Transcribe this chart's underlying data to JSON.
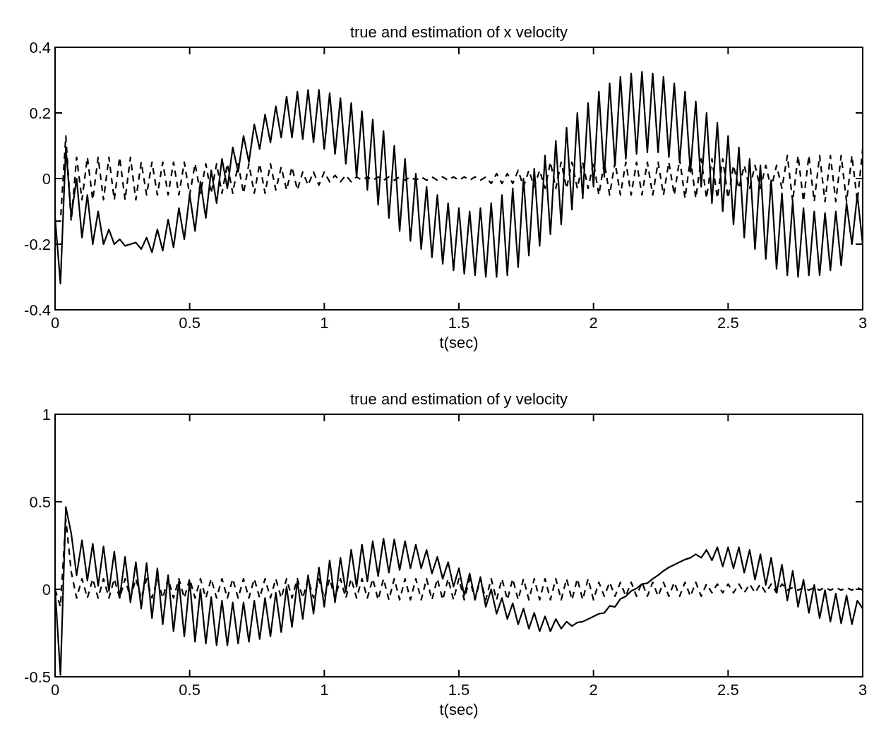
{
  "chart_data": [
    {
      "type": "line",
      "title": "true and estimation of x velocity",
      "xlabel": "t(sec)",
      "x": [
        0,
        0.02,
        0.04,
        0.06,
        0.08,
        0.1,
        0.12,
        0.14,
        0.16,
        0.18,
        0.2,
        0.22,
        0.24,
        0.26,
        0.28,
        0.3,
        0.32,
        0.34,
        0.36,
        0.38,
        0.4,
        0.42,
        0.44,
        0.46,
        0.48,
        0.5,
        0.52,
        0.54,
        0.56,
        0.58,
        0.6,
        0.62,
        0.64,
        0.66,
        0.68,
        0.7,
        0.72,
        0.74,
        0.76,
        0.78,
        0.8,
        0.82,
        0.84,
        0.86,
        0.88,
        0.9,
        0.92,
        0.94,
        0.96,
        0.98,
        1,
        1.02,
        1.04,
        1.06,
        1.08,
        1.1,
        1.12,
        1.14,
        1.16,
        1.18,
        1.2,
        1.22,
        1.24,
        1.26,
        1.28,
        1.3,
        1.32,
        1.34,
        1.36,
        1.38,
        1.4,
        1.42,
        1.44,
        1.46,
        1.48,
        1.5,
        1.52,
        1.54,
        1.56,
        1.58,
        1.6,
        1.62,
        1.64,
        1.66,
        1.68,
        1.7,
        1.72,
        1.74,
        1.76,
        1.78,
        1.8,
        1.82,
        1.84,
        1.86,
        1.88,
        1.9,
        1.92,
        1.94,
        1.96,
        1.98,
        2,
        2.02,
        2.04,
        2.06,
        2.08,
        2.1,
        2.12,
        2.14,
        2.16,
        2.18,
        2.2,
        2.22,
        2.24,
        2.26,
        2.28,
        2.3,
        2.32,
        2.34,
        2.36,
        2.38,
        2.4,
        2.42,
        2.44,
        2.46,
        2.48,
        2.5,
        2.52,
        2.54,
        2.56,
        2.58,
        2.6,
        2.62,
        2.64,
        2.66,
        2.68,
        2.7,
        2.72,
        2.74,
        2.76,
        2.78,
        2.8,
        2.82,
        2.84,
        2.86,
        2.88,
        2.9,
        2.92,
        2.94,
        2.96,
        2.98,
        3
      ],
      "series": [
        {
          "color": "#000000",
          "line_style": "solid",
          "values": [
            -0.12,
            -0.32,
            0.095,
            -0.115,
            0,
            -0.18,
            -0.05,
            -0.2,
            -0.1,
            -0.2,
            -0.155,
            -0.2,
            -0.185,
            -0.205,
            -0.2,
            -0.195,
            -0.215,
            -0.18,
            -0.225,
            -0.155,
            -0.22,
            -0.125,
            -0.21,
            -0.09,
            -0.185,
            -0.05,
            -0.16,
            -0.01,
            -0.12,
            0.025,
            -0.075,
            0.06,
            -0.03,
            0.095,
            0.02,
            0.13,
            0.05,
            0.165,
            0.09,
            0.195,
            0.11,
            0.22,
            0.125,
            0.25,
            0.125,
            0.265,
            0.12,
            0.27,
            0.11,
            0.27,
            0.09,
            0.26,
            0.075,
            0.245,
            0.045,
            0.23,
            0.005,
            0.205,
            -0.035,
            0.18,
            -0.08,
            0.145,
            -0.12,
            0.1,
            -0.16,
            0.06,
            -0.19,
            0.015,
            -0.215,
            -0.025,
            -0.24,
            -0.05,
            -0.26,
            -0.075,
            -0.28,
            -0.09,
            -0.29,
            -0.1,
            -0.295,
            -0.09,
            -0.3,
            -0.075,
            -0.3,
            -0.05,
            -0.295,
            -0.03,
            -0.27,
            0,
            -0.235,
            0.03,
            -0.205,
            0.07,
            -0.17,
            0.115,
            -0.14,
            0.155,
            -0.095,
            0.2,
            -0.06,
            0.23,
            -0.025,
            0.265,
            0.005,
            0.29,
            0.04,
            0.31,
            0.06,
            0.32,
            0.075,
            0.325,
            0.08,
            0.32,
            0.08,
            0.31,
            0.065,
            0.29,
            0.05,
            0.265,
            0.02,
            0.235,
            -0.025,
            0.2,
            -0.075,
            0.17,
            -0.1,
            0.13,
            -0.14,
            0.095,
            -0.18,
            0.06,
            -0.215,
            0.04,
            -0.245,
            -0.005,
            -0.275,
            -0.045,
            -0.295,
            -0.07,
            -0.3,
            -0.09,
            -0.295,
            -0.1,
            -0.295,
            -0.105,
            -0.28,
            -0.1,
            -0.265,
            -0.075,
            -0.2,
            -0.05,
            -0.2
          ]
        },
        {
          "color": "#000000",
          "line_style": "dashed",
          "values": [
            -0.13,
            -0.13,
            0.13,
            -0.13,
            0.065,
            -0.065,
            0.065,
            -0.065,
            0.065,
            -0.065,
            0.065,
            -0.065,
            0.065,
            -0.065,
            0.065,
            -0.065,
            0.05,
            -0.05,
            0.05,
            -0.05,
            0.05,
            -0.05,
            0.05,
            -0.05,
            0.05,
            -0.05,
            0.045,
            -0.045,
            0.045,
            -0.045,
            0.045,
            -0.045,
            0.045,
            -0.045,
            0.045,
            -0.045,
            0.045,
            -0.045,
            0.045,
            -0.045,
            0.045,
            -0.035,
            0.035,
            -0.035,
            0.035,
            -0.035,
            0.02,
            -0.02,
            0.02,
            -0.02,
            0.02,
            -0.01,
            0.01,
            -0.01,
            0.01,
            -0.01,
            0.005,
            -0.005,
            0.005,
            -0.005,
            0.005,
            -0.005,
            0.005,
            -0.005,
            0.005,
            -0.005,
            0.005,
            -0.005,
            0.005,
            -0.005,
            0.005,
            -0.005,
            0.005,
            -0.005,
            0.005,
            -0.005,
            0.005,
            -0.005,
            0.005,
            -0.005,
            0.005,
            -0.015,
            0.015,
            -0.015,
            0.015,
            -0.015,
            0.025,
            -0.025,
            0.025,
            -0.025,
            0.025,
            -0.03,
            0.05,
            -0.03,
            0.05,
            -0.03,
            0.05,
            -0.03,
            0.05,
            -0.03,
            0.05,
            -0.05,
            0.05,
            -0.05,
            0.05,
            -0.05,
            0.05,
            -0.05,
            0.05,
            -0.05,
            0.05,
            -0.05,
            0.05,
            -0.05,
            0.05,
            -0.05,
            0.06,
            -0.06,
            0.06,
            -0.06,
            0.06,
            -0.06,
            0.06,
            -0.06,
            0.06,
            -0.06,
            0.04,
            -0.03,
            0.04,
            -0.03,
            0.04,
            -0.03,
            0.04,
            -0.03,
            0.04,
            -0.03,
            0.07,
            -0.07,
            0.07,
            -0.07,
            0.07,
            -0.07,
            0.07,
            -0.07,
            0.07,
            -0.07,
            0.07,
            -0.07,
            0.07,
            -0.07,
            0.09
          ]
        }
      ],
      "xlim": [
        0,
        3
      ],
      "xticks": [
        0,
        0.5,
        1,
        1.5,
        2,
        2.5,
        3
      ],
      "ylim": [
        -0.4,
        0.4
      ],
      "yticks": [
        -0.4,
        -0.2,
        0,
        0.2,
        0.4
      ]
    },
    {
      "type": "line",
      "title": "true and estimation of y velocity",
      "xlabel": "t(sec)",
      "x": [
        0,
        0.02,
        0.04,
        0.06,
        0.08,
        0.1,
        0.12,
        0.14,
        0.16,
        0.18,
        0.2,
        0.22,
        0.24,
        0.26,
        0.28,
        0.3,
        0.32,
        0.34,
        0.36,
        0.38,
        0.4,
        0.42,
        0.44,
        0.46,
        0.48,
        0.5,
        0.52,
        0.54,
        0.56,
        0.58,
        0.6,
        0.62,
        0.64,
        0.66,
        0.68,
        0.7,
        0.72,
        0.74,
        0.76,
        0.78,
        0.8,
        0.82,
        0.84,
        0.86,
        0.88,
        0.9,
        0.92,
        0.94,
        0.96,
        0.98,
        1,
        1.02,
        1.04,
        1.06,
        1.08,
        1.1,
        1.12,
        1.14,
        1.16,
        1.18,
        1.2,
        1.22,
        1.24,
        1.26,
        1.28,
        1.3,
        1.32,
        1.34,
        1.36,
        1.38,
        1.4,
        1.42,
        1.44,
        1.46,
        1.48,
        1.5,
        1.52,
        1.54,
        1.56,
        1.58,
        1.6,
        1.62,
        1.64,
        1.66,
        1.68,
        1.7,
        1.72,
        1.74,
        1.76,
        1.78,
        1.8,
        1.82,
        1.84,
        1.86,
        1.88,
        1.9,
        1.92,
        1.94,
        1.96,
        1.98,
        2,
        2.02,
        2.04,
        2.06,
        2.08,
        2.1,
        2.12,
        2.14,
        2.16,
        2.18,
        2.2,
        2.22,
        2.24,
        2.26,
        2.28,
        2.3,
        2.32,
        2.34,
        2.36,
        2.38,
        2.4,
        2.42,
        2.44,
        2.46,
        2.48,
        2.5,
        2.52,
        2.54,
        2.56,
        2.58,
        2.6,
        2.62,
        2.64,
        2.66,
        2.68,
        2.7,
        2.72,
        2.74,
        2.76,
        2.78,
        2.8,
        2.82,
        2.84,
        2.86,
        2.88,
        2.9,
        2.92,
        2.94,
        2.96,
        2.98,
        3
      ],
      "series": [
        {
          "color": "#000000",
          "line_style": "solid",
          "values": [
            0,
            -0.49,
            0.47,
            0.32,
            0.08,
            0.28,
            0.05,
            0.26,
            0.02,
            0.245,
            -0.01,
            0.215,
            -0.05,
            0.185,
            -0.075,
            0.155,
            -0.11,
            0.15,
            -0.165,
            0.12,
            -0.2,
            0.08,
            -0.24,
            0.045,
            -0.27,
            0.045,
            -0.3,
            0,
            -0.31,
            -0.045,
            -0.32,
            -0.065,
            -0.32,
            -0.075,
            -0.31,
            -0.075,
            -0.3,
            -0.065,
            -0.285,
            -0.05,
            -0.27,
            -0.02,
            -0.245,
            0.015,
            -0.215,
            0.045,
            -0.17,
            0.08,
            -0.14,
            0.125,
            -0.1,
            0.165,
            -0.075,
            0.18,
            -0.015,
            0.225,
            0.015,
            0.255,
            0.045,
            0.275,
            0.075,
            0.29,
            0.095,
            0.285,
            0.11,
            0.275,
            0.12,
            0.255,
            0.12,
            0.225,
            0.09,
            0.185,
            0.06,
            0.155,
            0.015,
            0.12,
            -0.035,
            0.09,
            -0.055,
            0.07,
            -0.1,
            0,
            -0.14,
            -0.05,
            -0.17,
            -0.08,
            -0.2,
            -0.11,
            -0.225,
            -0.135,
            -0.24,
            -0.155,
            -0.24,
            -0.17,
            -0.225,
            -0.185,
            -0.21,
            -0.19,
            -0.185,
            -0.17,
            -0.155,
            -0.14,
            -0.135,
            -0.095,
            -0.1,
            -0.055,
            -0.04,
            -0.01,
            0.005,
            0.03,
            0.035,
            0.06,
            0.08,
            0.105,
            0.125,
            0.14,
            0.155,
            0.17,
            0.18,
            0.2,
            0.18,
            0.225,
            0.165,
            0.24,
            0.13,
            0.24,
            0.12,
            0.24,
            0.095,
            0.225,
            0.055,
            0.2,
            0.025,
            0.18,
            -0.02,
            0.14,
            -0.065,
            0.105,
            -0.1,
            0.055,
            -0.135,
            0.025,
            -0.165,
            -0.005,
            -0.185,
            -0.025,
            -0.195,
            -0.035,
            -0.2,
            -0.065,
            -0.11
          ]
        },
        {
          "color": "#000000",
          "line_style": "dashed",
          "values": [
            0,
            -0.1,
            0.4,
            0.1,
            -0.05,
            0.06,
            -0.05,
            0.06,
            -0.05,
            0.06,
            -0.05,
            0.06,
            -0.05,
            0.06,
            -0.05,
            0.06,
            -0.05,
            0.06,
            -0.05,
            0.06,
            -0.05,
            0.06,
            -0.05,
            0.06,
            -0.05,
            0.06,
            -0.05,
            0.06,
            -0.05,
            0.06,
            -0.05,
            0.06,
            -0.05,
            0.06,
            -0.05,
            0.06,
            -0.05,
            0.06,
            -0.05,
            0.06,
            -0.05,
            0.06,
            -0.05,
            0.06,
            -0.05,
            0.06,
            -0.05,
            0.06,
            -0.05,
            0.06,
            -0.05,
            0.06,
            -0.05,
            0.06,
            -0.05,
            0.06,
            -0.05,
            0.06,
            -0.05,
            0.06,
            -0.06,
            0.06,
            -0.06,
            0.06,
            -0.06,
            0.06,
            -0.06,
            0.06,
            -0.06,
            0.06,
            -0.06,
            0.06,
            -0.06,
            0.06,
            -0.06,
            0.06,
            -0.06,
            0.06,
            -0.06,
            0.06,
            -0.06,
            0.06,
            -0.06,
            0.06,
            -0.06,
            0.06,
            -0.06,
            0.06,
            -0.06,
            0.06,
            -0.06,
            0.06,
            -0.06,
            0.06,
            -0.06,
            0.06,
            -0.06,
            0.06,
            -0.06,
            0.06,
            -0.06,
            0.04,
            -0.04,
            0.04,
            -0.04,
            0.04,
            -0.04,
            0.04,
            -0.04,
            0.04,
            -0.04,
            0.04,
            -0.04,
            0.04,
            -0.04,
            0.04,
            -0.04,
            0.04,
            -0.04,
            0.04,
            -0.04,
            0.03,
            -0.02,
            0.03,
            -0.02,
            0.03,
            -0.02,
            0.03,
            -0.02,
            0.03,
            -0.02,
            0.03,
            -0.02,
            0.03,
            -0.02,
            0.03,
            -0.005,
            0.01,
            -0.005,
            0.01,
            -0.005,
            0.01,
            -0.005,
            0.01,
            -0.005,
            0.01,
            -0.005,
            0.01,
            -0.005,
            0.01,
            -0.005
          ]
        }
      ],
      "xlim": [
        0,
        3
      ],
      "xticks": [
        0,
        0.5,
        1,
        1.5,
        2,
        2.5,
        3
      ],
      "ylim": [
        -0.5,
        1
      ],
      "yticks": [
        -0.5,
        0,
        0.5,
        1
      ]
    }
  ]
}
